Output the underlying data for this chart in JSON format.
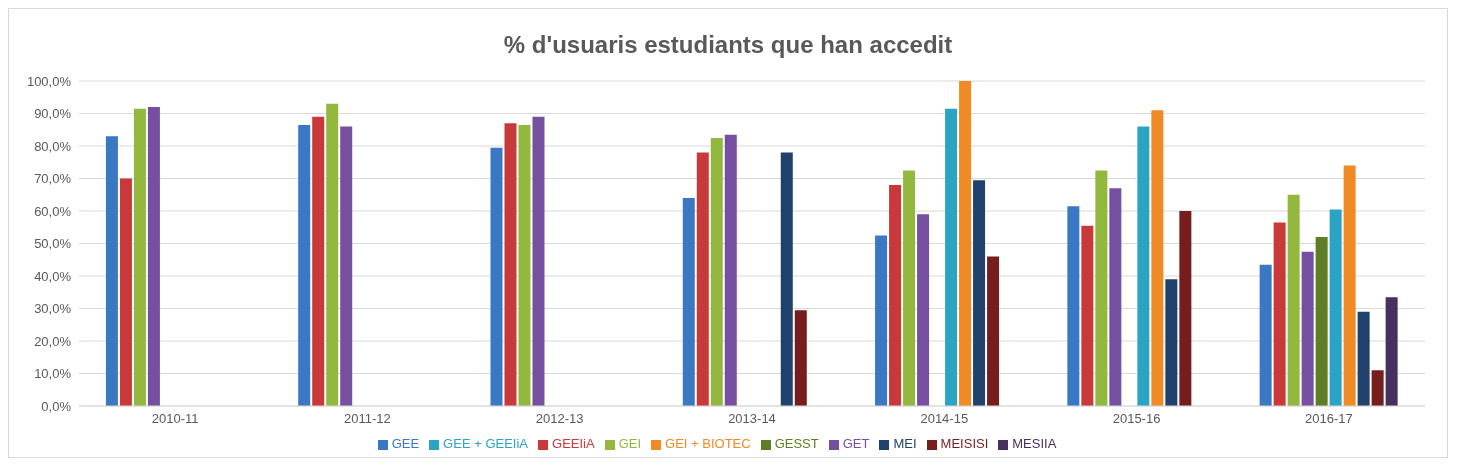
{
  "chart_data": {
    "type": "bar",
    "title": "% d'usuaris estudiants que han accedit",
    "categories": [
      "2010-11",
      "2011-12",
      "2012-13",
      "2013-14",
      "2014-15",
      "2015-16",
      "2016-17"
    ],
    "series": [
      {
        "name": "GEE",
        "color": "#3a78c4",
        "values": [
          83,
          86.5,
          79.5,
          64,
          52.5,
          61.5,
          43.5
        ]
      },
      {
        "name": "GEEIiA",
        "color": "#c9393a",
        "values": [
          70,
          89,
          87,
          78,
          68,
          55.5,
          56.5
        ]
      },
      {
        "name": "GEI",
        "color": "#93b83e",
        "values": [
          91.5,
          93,
          86.5,
          82.5,
          72.5,
          72.5,
          65
        ]
      },
      {
        "name": "GET",
        "color": "#7650a0",
        "values": [
          92,
          86,
          89,
          83.5,
          59,
          67,
          47.5
        ]
      },
      {
        "name": "GESST",
        "color": "#5e7d25",
        "values": [
          null,
          null,
          null,
          null,
          null,
          null,
          52
        ]
      },
      {
        "name": "GEE + GEEIiA",
        "color": "#2ba3c2",
        "values": [
          null,
          null,
          null,
          null,
          91.5,
          86,
          60.5
        ]
      },
      {
        "name": "GEI + BIOTEC",
        "color": "#f08a24",
        "values": [
          null,
          null,
          null,
          null,
          100,
          91,
          74
        ]
      },
      {
        "name": "MEI",
        "color": "#1f416c",
        "values": [
          null,
          null,
          null,
          78,
          69.5,
          39,
          29
        ]
      },
      {
        "name": "MEISISI",
        "color": "#761d1d",
        "values": [
          null,
          null,
          null,
          29.5,
          46,
          60,
          11
        ]
      },
      {
        "name": "MESIIA",
        "color": "#45305f",
        "values": [
          null,
          null,
          null,
          null,
          null,
          null,
          33.5
        ]
      }
    ],
    "ylim": [
      0,
      100
    ],
    "yticks": [
      {
        "value": 0,
        "label": "0,0%"
      },
      {
        "value": 10,
        "label": "10,0%"
      },
      {
        "value": 20,
        "label": "20,0%"
      },
      {
        "value": 30,
        "label": "30,0%"
      },
      {
        "value": 40,
        "label": "40,0%"
      },
      {
        "value": 50,
        "label": "50,0%"
      },
      {
        "value": 60,
        "label": "60,0%"
      },
      {
        "value": 70,
        "label": "70,0%"
      },
      {
        "value": 80,
        "label": "80,0%"
      },
      {
        "value": 90,
        "label": "90,0%"
      },
      {
        "value": 100,
        "label": "100,0%"
      }
    ],
    "grid": "y",
    "legend": "bottom"
  }
}
